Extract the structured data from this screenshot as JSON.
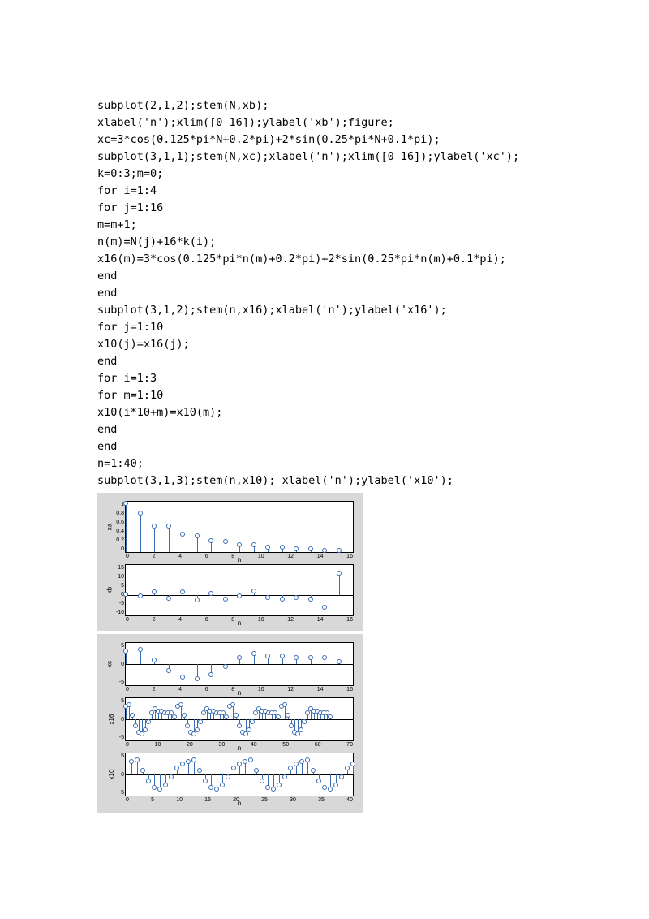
{
  "code_lines": [
    "subplot(2,1,2);stem(N,xb);",
    "xlabel('n');xlim([0 16]);ylabel('xb');figure;",
    "xc=3*cos(0.125*pi*N+0.2*pi)+2*sin(0.25*pi*N+0.1*pi);",
    "subplot(3,1,1);stem(N,xc);xlabel('n');xlim([0 16]);ylabel('xc');",
    "k=0:3;m=0;",
    "for i=1:4",
    "for j=1:16",
    "m=m+1;",
    "n(m)=N(j)+16*k(i);",
    "x16(m)=3*cos(0.125*pi*n(m)+0.2*pi)+2*sin(0.25*pi*n(m)+0.1*pi);",
    "end",
    "end",
    "subplot(3,1,2);stem(n,x16);xlabel('n');ylabel('x16');",
    "for j=1:10",
    "x10(j)=x16(j);",
    "end",
    "for i=1:3",
    "for m=1:10",
    "x10(i*10+m)=x10(m);",
    "end",
    "end",
    "n=1:40;",
    "subplot(3,1,3);stem(n,x10); xlabel('n');ylabel('x10');"
  ],
  "fig1": {
    "bg": "#d8d8d8",
    "xa": {
      "ylabel": "xa",
      "xlabel": "n",
      "xlim": [
        0,
        16
      ],
      "ylim": [
        0,
        1
      ],
      "yticks": [
        "1",
        "0.8",
        "0.6",
        "0.4",
        "0.2",
        "0"
      ],
      "xticks": [
        "0",
        "2",
        "4",
        "6",
        "8",
        "10",
        "12",
        "14",
        "16"
      ],
      "n": [
        0,
        1,
        2,
        3,
        4,
        5,
        6,
        7,
        8,
        9,
        10,
        11,
        12,
        13,
        14,
        15
      ],
      "y": [
        0.96,
        0.78,
        0.52,
        0.52,
        0.36,
        0.33,
        0.22,
        0.21,
        0.14,
        0.14,
        0.09,
        0.09,
        0.06,
        0.06,
        0.04,
        0.04
      ],
      "stem_color": "#3b6db3"
    },
    "xb": {
      "ylabel": "xb",
      "xlabel": "n",
      "xlim": [
        0,
        16
      ],
      "ylim": [
        -10,
        15
      ],
      "yticks": [
        "15",
        "10",
        "5",
        "0",
        "-5",
        "-10"
      ],
      "xticks": [
        "0",
        "2",
        "4",
        "6",
        "8",
        "10",
        "12",
        "14",
        "16"
      ],
      "n": [
        0,
        1,
        2,
        3,
        4,
        5,
        6,
        7,
        8,
        9,
        10,
        11,
        12,
        13,
        14,
        15
      ],
      "y": [
        0.5,
        -0.5,
        1.5,
        -1.5,
        1.5,
        -2.5,
        1.0,
        -2.0,
        -0.5,
        2.0,
        -1.0,
        -2.0,
        -1.0,
        -2.0,
        -6.0,
        11.0
      ],
      "stem_color": "#3b6db3"
    }
  },
  "fig2": {
    "bg": "#d8d8d8",
    "xc": {
      "ylabel": "xc",
      "xlabel": "n",
      "xlim": [
        0,
        16
      ],
      "ylim": [
        -5,
        5
      ],
      "yticks": [
        "5",
        "0",
        "-5"
      ],
      "xticks": [
        "0",
        "2",
        "4",
        "6",
        "8",
        "10",
        "12",
        "14",
        "16"
      ],
      "n": [
        0,
        1,
        2,
        3,
        4,
        5,
        6,
        7,
        8,
        9,
        10,
        11,
        12,
        13,
        14,
        15
      ],
      "y": [
        3.0,
        3.5,
        1.0,
        -1.5,
        -3.0,
        -3.5,
        -2.5,
        -0.5,
        1.5,
        2.5,
        2.0,
        2.0,
        1.5,
        1.5,
        1.5,
        0.5
      ],
      "stem_color": "#3b6db3"
    },
    "x16": {
      "ylabel": "x16",
      "xlabel": "n",
      "xlim": [
        0,
        70
      ],
      "ylim": [
        -5,
        5
      ],
      "yticks": [
        "5",
        "0",
        "-5"
      ],
      "xticks": [
        "0",
        "10",
        "20",
        "30",
        "40",
        "50",
        "60",
        "70"
      ],
      "n": [
        0,
        1,
        2,
        3,
        4,
        5,
        6,
        7,
        8,
        9,
        10,
        11,
        12,
        13,
        14,
        15,
        16,
        17,
        18,
        19,
        20,
        21,
        22,
        23,
        24,
        25,
        26,
        27,
        28,
        29,
        30,
        31,
        32,
        33,
        34,
        35,
        36,
        37,
        38,
        39,
        40,
        41,
        42,
        43,
        44,
        45,
        46,
        47,
        48,
        49,
        50,
        51,
        52,
        53,
        54,
        55,
        56,
        57,
        58,
        59,
        60,
        61,
        62,
        63
      ],
      "y": [
        3.0,
        3.5,
        1.0,
        -1.5,
        -3.0,
        -3.5,
        -2.5,
        -0.5,
        1.5,
        2.5,
        2.0,
        2.0,
        1.5,
        1.5,
        1.5,
        0.5,
        3.0,
        3.5,
        1.0,
        -1.5,
        -3.0,
        -3.5,
        -2.5,
        -0.5,
        1.5,
        2.5,
        2.0,
        2.0,
        1.5,
        1.5,
        1.5,
        0.5,
        3.0,
        3.5,
        1.0,
        -1.5,
        -3.0,
        -3.5,
        -2.5,
        -0.5,
        1.5,
        2.5,
        2.0,
        2.0,
        1.5,
        1.5,
        1.5,
        0.5,
        3.0,
        3.5,
        1.0,
        -1.5,
        -3.0,
        -3.5,
        -2.5,
        -0.5,
        1.5,
        2.5,
        2.0,
        2.0,
        1.5,
        1.5,
        1.5,
        0.5
      ],
      "stem_color": "#3b6db3"
    },
    "x10": {
      "ylabel": "x10",
      "xlabel": "n",
      "xlim": [
        0,
        40
      ],
      "ylim": [
        -5,
        5
      ],
      "yticks": [
        "5",
        "0",
        "-5"
      ],
      "xticks": [
        "0",
        "5",
        "10",
        "15",
        "20",
        "25",
        "30",
        "35",
        "40"
      ],
      "n": [
        1,
        2,
        3,
        4,
        5,
        6,
        7,
        8,
        9,
        10,
        11,
        12,
        13,
        14,
        15,
        16,
        17,
        18,
        19,
        20,
        21,
        22,
        23,
        24,
        25,
        26,
        27,
        28,
        29,
        30,
        31,
        32,
        33,
        34,
        35,
        36,
        37,
        38,
        39,
        40
      ],
      "y": [
        3.0,
        3.5,
        1.0,
        -1.5,
        -3.0,
        -3.5,
        -2.5,
        -0.5,
        1.5,
        2.5,
        3.0,
        3.5,
        1.0,
        -1.5,
        -3.0,
        -3.5,
        -2.5,
        -0.5,
        1.5,
        2.5,
        3.0,
        3.5,
        1.0,
        -1.5,
        -3.0,
        -3.5,
        -2.5,
        -0.5,
        1.5,
        2.5,
        3.0,
        3.5,
        1.0,
        -1.5,
        -3.0,
        -3.5,
        -2.5,
        -0.5,
        1.5,
        2.5
      ],
      "stem_color": "#3b6db3"
    }
  }
}
